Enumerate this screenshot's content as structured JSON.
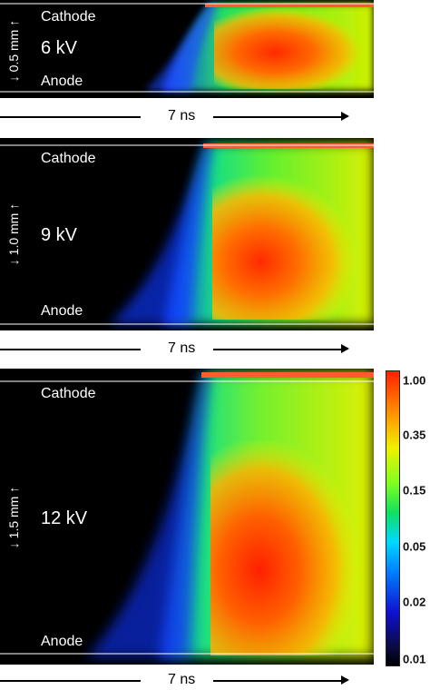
{
  "panels": [
    {
      "top_label": "Cathode",
      "bottom_label": "Anode",
      "voltage": "6 kV",
      "gap": "0.5 mm"
    },
    {
      "top_label": "Cathode",
      "bottom_label": "Anode",
      "voltage": "9 kV",
      "gap": "1.0 mm"
    },
    {
      "top_label": "Cathode",
      "bottom_label": "Anode",
      "voltage": "12 kV",
      "gap": "1.5 mm"
    }
  ],
  "time_axis": {
    "label": "7 ns"
  },
  "colorbar": {
    "ticks": [
      "1.00",
      "0.35",
      "0.15",
      "0.05",
      "0.02",
      "0.01"
    ],
    "colors": [
      "#000000",
      "#1010d0",
      "#00d8ff",
      "#10e060",
      "#f0f000",
      "#ff9000",
      "#ff2000"
    ]
  }
}
